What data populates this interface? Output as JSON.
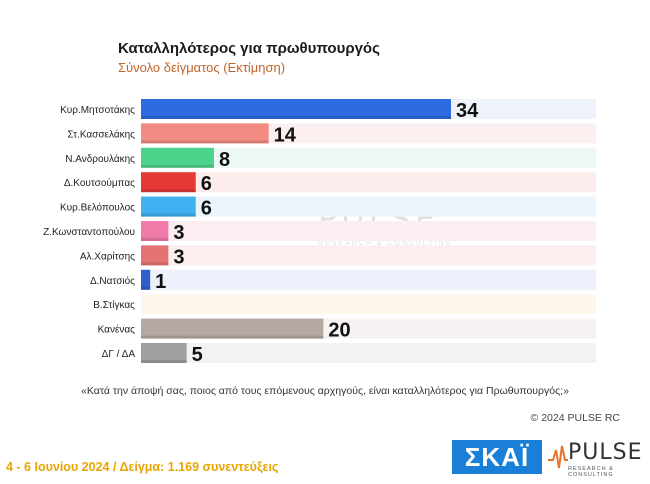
{
  "chart_data": {
    "type": "bar",
    "orientation": "horizontal",
    "title": "Καταλληλότερος για πρωθυπουργός",
    "subtitle": "Σύνολο δείγματος   (Εκτίμηση)",
    "categories": [
      "Κυρ.Μητσοτάκης",
      "Στ.Κασσελάκης",
      "Ν.Ανδρουλάκης",
      "Δ.Κουτσούμπας",
      "Κυρ.Βελόπουλος",
      "Ζ.Κωνσταντοπούλου",
      "Αλ.Χαρίτσης",
      "Δ.Νατσιός",
      "Β.Στίγκας",
      "Κανένας",
      "ΔΓ / ΔΑ"
    ],
    "values": [
      34,
      14,
      8,
      6,
      6,
      3,
      3,
      1,
      null,
      20,
      5
    ],
    "value_labels": [
      "34",
      "14",
      "8",
      "6",
      "6",
      "3",
      "3",
      "1",
      "",
      "20",
      "5"
    ],
    "colors": [
      "#2d6be0",
      "#f28b82",
      "#4cd38a",
      "#e53935",
      "#3fb0f0",
      "#f07aa8",
      "#e57373",
      "#2d5fd0",
      "#cccccc",
      "#b5a8a2",
      "#a0a0a0"
    ],
    "row_backgrounds": [
      "#eef2fb",
      "#fcefef",
      "#ecf8f1",
      "#fcecec",
      "#ecf5fc",
      "#fcedf3",
      "#fcedee",
      "#eef0fb",
      "#fdf7ec",
      "#f5f2f1",
      "#f2f2f2"
    ],
    "xlim": [
      0,
      34
    ]
  },
  "question": "«Κατά την άποψή σας, ποιος από τους επόμενους αρχηγούς, είναι καταλληλότερος για Πρωθυπουργός;»",
  "copyright": "© 2024 PULSE RC",
  "footer": "4 - 6  Ιουνίου 2024  /  Δείγμα:  1.169 συνεντεύξεις",
  "logos": {
    "skai": "ΣΚΑΪ",
    "pulse": "PULSE",
    "pulse_sub": "RESEARCH & CONSULTING"
  }
}
